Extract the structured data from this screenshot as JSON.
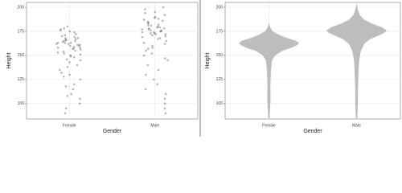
{
  "chart_data": [
    {
      "type": "scatter",
      "xlabel": "Gender",
      "ylabel": "Height",
      "categories": [
        "Female",
        "Male"
      ],
      "values": [
        [
          162,
          158,
          165,
          170,
          155,
          160,
          163,
          167,
          172,
          150,
          148,
          157,
          161,
          164,
          166,
          169,
          174,
          153,
          159,
          162,
          145,
          140,
          135,
          130,
          125,
          120,
          115,
          110,
          105,
          100,
          95,
          90,
          168,
          171,
          176,
          178,
          180,
          152,
          156,
          163,
          165,
          160,
          158,
          154,
          149,
          143,
          138,
          132,
          161,
          163,
          166,
          168,
          157,
          151,
          175,
          177,
          146,
          128,
          118,
          108
        ],
        [
          176,
          172,
          180,
          185,
          170,
          174,
          178,
          182,
          188,
          190,
          195,
          168,
          165,
          160,
          175,
          177,
          179,
          181,
          173,
          171,
          186,
          192,
          198,
          200,
          163,
          158,
          155,
          150,
          145,
          140,
          135,
          130,
          125,
          120,
          115,
          110,
          105,
          100,
          95,
          90,
          176,
          178,
          174,
          183,
          187,
          169,
          167,
          184,
          175,
          173,
          179,
          181,
          162,
          157,
          152,
          147,
          194,
          189,
          177,
          172
        ]
      ],
      "color": "#333333",
      "ylim": [
        84,
        205
      ],
      "yticks": [
        100,
        125,
        150,
        175,
        200
      ],
      "grid": true
    },
    {
      "type": "violin",
      "xlabel": "Gender",
      "ylabel": "Height",
      "categories": [
        "Female",
        "Male"
      ],
      "y_levels": [
        [
          85,
          95,
          105,
          115,
          125,
          135,
          145,
          150,
          155,
          158,
          161,
          163,
          165,
          168,
          171,
          175,
          179,
          183
        ],
        [
          85,
          95,
          105,
          115,
          125,
          135,
          145,
          155,
          162,
          167,
          171,
          174,
          176,
          179,
          183,
          187,
          192,
          197,
          203
        ]
      ],
      "density": [
        [
          0.02,
          0.03,
          0.05,
          0.04,
          0.05,
          0.06,
          0.1,
          0.2,
          0.45,
          0.75,
          0.95,
          1,
          0.9,
          0.6,
          0.35,
          0.12,
          0.04,
          0
        ],
        [
          0.02,
          0.03,
          0.04,
          0.04,
          0.05,
          0.06,
          0.08,
          0.14,
          0.25,
          0.45,
          0.75,
          0.95,
          1,
          0.85,
          0.5,
          0.25,
          0.1,
          0.04,
          0
        ]
      ],
      "color": "#bdbdbd",
      "ylim": [
        84,
        205
      ],
      "yticks": [
        100,
        125,
        150,
        175,
        200
      ],
      "grid": true
    }
  ]
}
